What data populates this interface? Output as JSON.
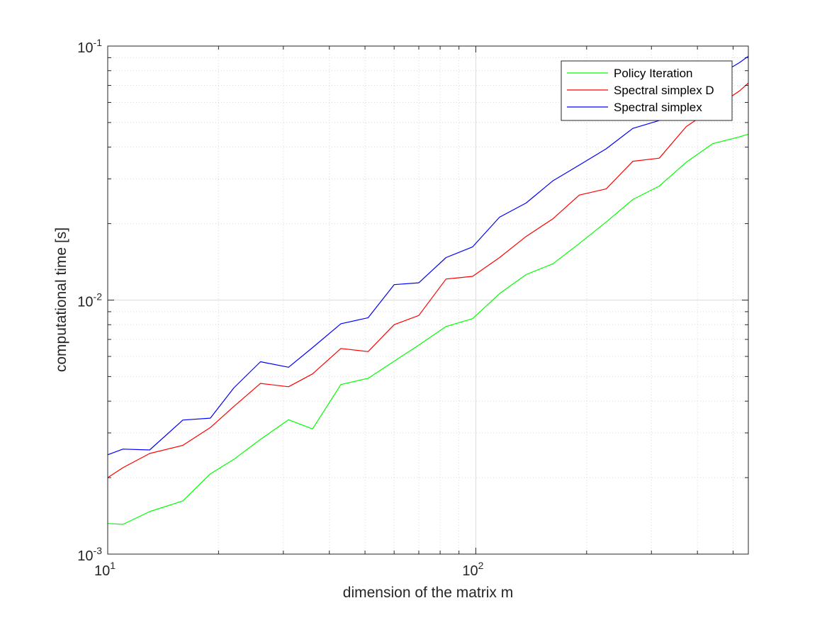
{
  "chart_data": {
    "type": "line",
    "xlabel": "dimension of the matrix m",
    "ylabel": "computational time [s]",
    "xscale": "log",
    "yscale": "log",
    "xlim": [
      10,
      550
    ],
    "ylim": [
      0.001,
      0.1
    ],
    "grid": true,
    "legend_position": "top-right",
    "x_ticks": [
      {
        "value": 10,
        "base": "10",
        "exp": "1"
      },
      {
        "value": 100,
        "base": "10",
        "exp": "2"
      }
    ],
    "y_ticks": [
      {
        "value": 0.001,
        "base": "10",
        "exp": "-3"
      },
      {
        "value": 0.01,
        "base": "10",
        "exp": "-2"
      },
      {
        "value": 0.1,
        "base": "10",
        "exp": "-1"
      }
    ],
    "x": [
      10,
      11,
      13,
      16,
      19,
      22,
      26,
      31,
      36,
      43,
      51,
      60,
      70,
      83,
      98,
      116,
      137,
      162,
      191,
      226,
      267,
      315,
      373,
      440,
      520,
      550
    ],
    "series": [
      {
        "name": "Policy Iteration",
        "color": "#00ff00",
        "values": [
          0.00132,
          0.00131,
          0.00147,
          0.00162,
          0.00207,
          0.00236,
          0.00283,
          0.00338,
          0.00311,
          0.00465,
          0.00492,
          0.00575,
          0.00665,
          0.00787,
          0.00845,
          0.0106,
          0.0126,
          0.0139,
          0.0167,
          0.0203,
          0.0249,
          0.0281,
          0.0349,
          0.0413,
          0.0439,
          0.045
        ]
      },
      {
        "name": "Spectral simplex D",
        "color": "#ff0000",
        "values": [
          0.002,
          0.00219,
          0.00249,
          0.00268,
          0.00315,
          0.00381,
          0.0047,
          0.00456,
          0.00512,
          0.00645,
          0.00627,
          0.008,
          0.0087,
          0.0121,
          0.0124,
          0.0147,
          0.0178,
          0.0209,
          0.0259,
          0.0274,
          0.0352,
          0.0362,
          0.0482,
          0.0566,
          0.0665,
          0.0715
        ]
      },
      {
        "name": "Spectral simplex",
        "color": "#0000ff",
        "values": [
          0.00246,
          0.00259,
          0.00257,
          0.00337,
          0.00343,
          0.00451,
          0.00572,
          0.00544,
          0.0065,
          0.00807,
          0.00852,
          0.0115,
          0.0117,
          0.0147,
          0.0162,
          0.0212,
          0.0241,
          0.0295,
          0.034,
          0.0394,
          0.0474,
          0.0509,
          0.062,
          0.0745,
          0.086,
          0.0912
        ]
      }
    ]
  }
}
